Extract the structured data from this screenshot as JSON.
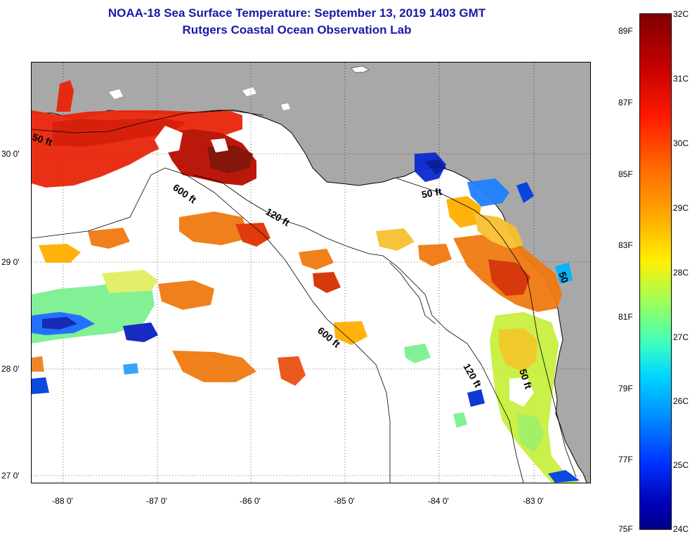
{
  "title": {
    "line1": "NOAA-18 Sea Surface Temperature:  September 13, 2019 1403 GMT",
    "line2": "Rutgers Coastal Ocean Observation Lab"
  },
  "map": {
    "lat_labels": [
      "30 0'",
      "29 0'",
      "28 0'",
      "27 0'"
    ],
    "lon_labels": [
      "-88 0'",
      "-87 0'",
      "-86 0'",
      "-85 0'",
      "-84 0'",
      "-83 0'"
    ],
    "contour_labels": {
      "a": "50 ft",
      "b": "600 ft",
      "c": "120 ft",
      "d": "50 ft",
      "e": "600 ft",
      "f": "120 ft",
      "g": "50 ft",
      "h": "50"
    },
    "land_color": "#a8a8a8",
    "water_color": "#ffffff"
  },
  "colorbar": {
    "fahrenheit": [
      "89F",
      "87F",
      "85F",
      "83F",
      "81F",
      "79F",
      "77F",
      "75F"
    ],
    "celsius": [
      "32C",
      "31C",
      "30C",
      "29C",
      "28C",
      "27C",
      "26C",
      "25C",
      "24C"
    ],
    "colors": [
      "#7f0000",
      "#ff1a00",
      "#ffae00",
      "#fff000",
      "#3cffbe",
      "#0090ff",
      "#00008a"
    ]
  }
}
